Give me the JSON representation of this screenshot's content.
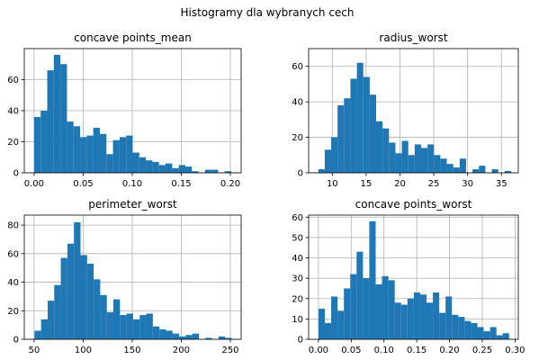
{
  "figure": {
    "title": "Histogramy dla wybranych cech",
    "bar_color": "#1f77b4",
    "grid": true
  },
  "chart_data": [
    {
      "type": "bar",
      "title": "concave points_mean",
      "bin_start": 0.0,
      "bin_width": 0.0067,
      "values": [
        36,
        40,
        66,
        76,
        70,
        33,
        30,
        23,
        24,
        29,
        25,
        12,
        21,
        23,
        24,
        13,
        10,
        8,
        7,
        5,
        6,
        3,
        5,
        4,
        1,
        0,
        2,
        2,
        0,
        1
      ],
      "xlim": [
        -0.01,
        0.211
      ],
      "ylim": [
        0,
        80
      ],
      "xticks": [
        0.0,
        0.05,
        0.1,
        0.15,
        0.2
      ],
      "xtick_labels": [
        "0.00",
        "0.05",
        "0.10",
        "0.15",
        "0.20"
      ],
      "yticks": [
        0,
        20,
        40,
        60
      ],
      "ytick_labels": [
        "0",
        "20",
        "40",
        "60"
      ]
    },
    {
      "type": "bar",
      "title": "radius_worst",
      "bin_start": 7.93,
      "bin_width": 0.95,
      "values": [
        2,
        13,
        20,
        38,
        42,
        53,
        62,
        54,
        44,
        29,
        25,
        17,
        11,
        18,
        10,
        16,
        14,
        16,
        10,
        8,
        5,
        3,
        8,
        0,
        2,
        4,
        0,
        2,
        0,
        1
      ],
      "xlim": [
        6.5,
        37.5
      ],
      "ylim": [
        0,
        70
      ],
      "xticks": [
        10,
        15,
        20,
        25,
        30,
        35
      ],
      "xtick_labels": [
        "10",
        "15",
        "20",
        "25",
        "30",
        "35"
      ],
      "yticks": [
        0,
        20,
        40,
        60
      ],
      "ytick_labels": [
        "0",
        "20",
        "40",
        "60"
      ]
    },
    {
      "type": "bar",
      "title": "perimeter_worst",
      "bin_start": 50.4,
      "bin_width": 6.7,
      "values": [
        6,
        14,
        27,
        38,
        57,
        67,
        82,
        59,
        53,
        42,
        31,
        19,
        28,
        17,
        18,
        14,
        17,
        18,
        9,
        7,
        6,
        4,
        2,
        3,
        4,
        0,
        1,
        0,
        2,
        1
      ],
      "xlim": [
        40,
        261
      ],
      "ylim": [
        0,
        87
      ],
      "xticks": [
        50,
        100,
        150,
        200,
        250
      ],
      "xtick_labels": [
        "50",
        "100",
        "150",
        "200",
        "250"
      ],
      "yticks": [
        0,
        20,
        40,
        60,
        80
      ],
      "ytick_labels": [
        "0",
        "20",
        "40",
        "60",
        "80"
      ]
    },
    {
      "type": "bar",
      "title": "concave points_worst",
      "bin_start": 0.0,
      "bin_width": 0.0097,
      "values": [
        15,
        8,
        21,
        14,
        25,
        32,
        43,
        30,
        58,
        27,
        31,
        29,
        18,
        17,
        20,
        23,
        22,
        18,
        23,
        13,
        21,
        12,
        11,
        9,
        8,
        6,
        4,
        6,
        2,
        3
      ],
      "xlim": [
        -0.015,
        0.305
      ],
      "ylim": [
        0,
        61
      ],
      "xticks": [
        0.0,
        0.05,
        0.1,
        0.15,
        0.2,
        0.25,
        0.3
      ],
      "xtick_labels": [
        "0.00",
        "0.05",
        "0.10",
        "0.15",
        "0.20",
        "0.25",
        "0.30"
      ],
      "yticks": [
        0,
        10,
        20,
        30,
        40,
        50,
        60
      ],
      "ytick_labels": [
        "0",
        "10",
        "20",
        "30",
        "40",
        "50",
        "60"
      ]
    }
  ]
}
